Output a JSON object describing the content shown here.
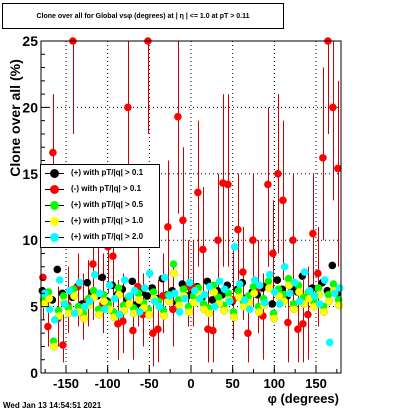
{
  "chart_data": {
    "type": "scatter",
    "title": "Clone  over all for Global vsφ (degrees) at | η | <= 1.0 at pT > 0.11",
    "xlabel": "φ (degrees)",
    "ylabel": "Clone  over all (%)",
    "xlim": [
      -180,
      180
    ],
    "ylim": [
      0,
      25
    ],
    "xticks": [
      "-150",
      "-100",
      "-50",
      "0",
      "50",
      "100",
      "150"
    ],
    "xtick_values": [
      -150,
      -100,
      -50,
      0,
      50,
      100,
      150
    ],
    "yticks": [
      "0",
      "5",
      "10",
      "15",
      "20",
      "25"
    ],
    "ytick_values": [
      0,
      5,
      10,
      15,
      20,
      25
    ],
    "grid": true,
    "legend_position": "middle-left",
    "x": [
      -177,
      -171,
      -165,
      -159,
      -153,
      -147,
      -141,
      -135,
      -129,
      -123,
      -117,
      -111,
      -105,
      -99,
      -93,
      -87,
      -81,
      -75,
      -69,
      -63,
      -57,
      -51,
      -45,
      -39,
      -33,
      -27,
      -21,
      -15,
      -9,
      -3,
      3,
      9,
      15,
      21,
      27,
      33,
      39,
      45,
      51,
      57,
      63,
      69,
      75,
      81,
      87,
      93,
      99,
      105,
      111,
      117,
      123,
      129,
      135,
      141,
      147,
      153,
      159,
      165,
      171,
      177
    ],
    "series": [
      {
        "name": "(+) with pT/|q| > 0.1",
        "color": "#000000",
        "values": [
          6.2,
          5.9,
          5.5,
          7.8,
          6.0,
          5.1,
          5.7,
          6.5,
          5.2,
          6.8,
          6.1,
          5.8,
          7.2,
          5.4,
          6.6,
          5.9,
          6.3,
          5.5,
          6.9,
          5.2,
          6.1,
          5.8,
          6.4,
          5.6,
          7.1,
          5.9,
          6.2,
          5.3,
          6.7,
          5.8,
          6.0,
          6.5,
          5.7,
          6.9,
          5.5,
          6.2,
          5.9,
          6.6,
          5.4,
          6.3,
          6.8,
          5.7,
          6.1,
          5.9,
          6.4,
          6.6,
          5.2,
          7.0,
          6.3,
          5.8,
          6.5,
          6.1,
          7.3,
          5.6,
          6.4,
          5.9,
          6.8,
          6.2,
          8.1,
          6.0
        ]
      },
      {
        "name": "(-) with pT/|q| > 0.1",
        "color": "#ff0000",
        "values": [
          7.2,
          3.5,
          16.6,
          4.1,
          2.1,
          5.1,
          25.0,
          6.5,
          4.5,
          5.5,
          8.2,
          10.6,
          5.2,
          9.5,
          8.8,
          3.7,
          3.9,
          20.0,
          3.2,
          6.5,
          4.4,
          25.0,
          3.0,
          3.3,
          5.8,
          11.0,
          4.8,
          19.3,
          11.5,
          6.5,
          6.5,
          13.6,
          9.3,
          3.3,
          3.2,
          10.0,
          14.3,
          14.2,
          5.5,
          10.8,
          7.6,
          3.0,
          10.0,
          6.4,
          4.3,
          14.2,
          9.0,
          15.0,
          13.0,
          3.8,
          10.0,
          3.3,
          3.7,
          4.4,
          10.5,
          7.5,
          16.2,
          25.0,
          20.0,
          15.4
        ]
      },
      {
        "name": "(+) with pT/|q| > 0.5",
        "color": "#00ff00",
        "values": [
          5.5,
          6.1,
          2.4,
          4.7,
          5.8,
          4.9,
          6.3,
          5.0,
          4.5,
          5.6,
          6.2,
          4.8,
          5.9,
          5.2,
          4.6,
          6.4,
          5.1,
          5.7,
          4.9,
          6.0,
          5.3,
          4.8,
          6.1,
          5.4,
          4.7,
          5.9,
          8.2,
          5.5,
          6.3,
          5.0,
          5.8,
          6.4,
          5.2,
          4.9,
          6.6,
          5.7,
          5.1,
          6.0,
          4.6,
          6.2,
          5.4,
          5.8,
          6.5,
          5.0,
          5.6,
          6.9,
          4.5,
          6.3,
          5.9,
          7.1,
          5.2,
          6.6,
          5.7,
          6.1,
          5.4,
          6.4,
          5.0,
          5.9,
          6.7,
          5.5
        ]
      },
      {
        "name": "(+) with pT/|q| > 1.0",
        "color": "#ffff00",
        "values": [
          5.2,
          5.6,
          2.0,
          4.3,
          5.3,
          4.5,
          5.8,
          4.6,
          4.1,
          5.1,
          5.7,
          4.4,
          5.4,
          4.8,
          4.2,
          5.9,
          4.7,
          5.2,
          4.5,
          5.5,
          4.9,
          4.4,
          5.6,
          5.0,
          4.3,
          5.4,
          7.5,
          5.1,
          5.8,
          4.6,
          5.3,
          5.9,
          4.8,
          4.5,
          6.1,
          5.2,
          4.7,
          5.5,
          4.2,
          5.7,
          5.0,
          5.3,
          6.0,
          4.6,
          5.1,
          6.4,
          4.1,
          5.8,
          5.4,
          6.6,
          4.8,
          6.1,
          5.2,
          5.6,
          5.0,
          5.9,
          4.6,
          5.4,
          6.2,
          5.1
        ]
      },
      {
        "name": "(+) with pT/|q| > 2.0",
        "color": "#00ffff",
        "values": [
          6.0,
          4.8,
          4.0,
          7.0,
          5.2,
          6.2,
          4.5,
          6.8,
          5.0,
          5.4,
          7.4,
          6.0,
          4.8,
          6.6,
          5.6,
          4.4,
          7.0,
          5.8,
          6.2,
          4.6,
          6.4,
          7.5,
          5.4,
          5.0,
          7.2,
          5.8,
          6.0,
          4.6,
          5.6,
          6.8,
          6.2,
          5.6,
          5.9,
          6.5,
          5.0,
          6.9,
          6.3,
          5.4,
          9.5,
          6.7,
          5.5,
          4.8,
          7.0,
          6.6,
          5.3,
          7.4,
          6.1,
          5.2,
          8.0,
          6.0,
          6.8,
          5.4,
          7.6,
          6.2,
          5.8,
          5.2,
          7.0,
          2.3,
          6.0,
          6.4
        ]
      }
    ],
    "red_error_bars": [
      [
        4.0,
        6.0
      ],
      [
        2.0,
        5.6
      ],
      [
        14.0,
        21.0
      ],
      [
        2.0,
        6.5
      ],
      [
        0.8,
        4.4
      ],
      [
        3.0,
        8.0
      ],
      [
        18.0,
        25.0
      ],
      [
        3.5,
        9.0
      ],
      [
        2.5,
        7.5
      ],
      [
        3.5,
        8.5
      ],
      [
        4.0,
        13.0
      ],
      [
        7.0,
        14.0
      ],
      [
        3.0,
        9.0
      ],
      [
        6.0,
        13.0
      ],
      [
        5.0,
        12.0
      ],
      [
        1.0,
        7.0
      ],
      [
        1.5,
        7.5
      ],
      [
        13.0,
        25.0
      ],
      [
        1.0,
        6.0
      ],
      [
        3.5,
        10.0
      ],
      [
        2.0,
        7.5
      ],
      [
        18.0,
        25.0
      ],
      [
        0.5,
        6.5
      ],
      [
        0.8,
        7.0
      ],
      [
        3.0,
        9.0
      ],
      [
        6.0,
        16.0
      ],
      [
        2.0,
        8.0
      ],
      [
        12.0,
        25.0
      ],
      [
        6.0,
        17.0
      ],
      [
        3.5,
        10.0
      ],
      [
        3.5,
        10.0
      ],
      [
        8.0,
        19.0
      ],
      [
        5.0,
        14.0
      ],
      [
        0.8,
        7.0
      ],
      [
        0.8,
        6.5
      ],
      [
        5.0,
        15.0
      ],
      [
        8.0,
        21.0
      ],
      [
        8.0,
        21.0
      ],
      [
        2.5,
        9.5
      ],
      [
        6.0,
        15.0
      ],
      [
        4.0,
        11.0
      ],
      [
        0.8,
        6.0
      ],
      [
        5.0,
        15.0
      ],
      [
        3.0,
        10.0
      ],
      [
        1.0,
        7.5
      ],
      [
        8.0,
        20.0
      ],
      [
        5.0,
        13.0
      ],
      [
        9.0,
        21.0
      ],
      [
        7.0,
        19.0
      ],
      [
        0.8,
        7.0
      ],
      [
        5.0,
        15.0
      ],
      [
        0.8,
        6.0
      ],
      [
        0.8,
        7.0
      ],
      [
        1.0,
        8.0
      ],
      [
        6.0,
        15.0
      ],
      [
        3.5,
        11.0
      ],
      [
        10.0,
        23.0
      ],
      [
        18.0,
        25.0
      ],
      [
        13.0,
        25.0
      ],
      [
        8.0,
        22.0
      ]
    ]
  },
  "legend": [
    {
      "label": "(+) with pT/|q| > 0.1",
      "color": "#000000"
    },
    {
      "label": "(-) with pT/|q| > 0.1",
      "color": "#ff0000"
    },
    {
      "label": "(+) with pT/|q| > 0.5",
      "color": "#00ff00"
    },
    {
      "label": "(+) with pT/|q| > 1.0",
      "color": "#ffff00"
    },
    {
      "label": "(+) with pT/|q| > 2.0",
      "color": "#00ffff"
    }
  ],
  "timestamp": "Wed Jan 13 14:54:51 2021"
}
